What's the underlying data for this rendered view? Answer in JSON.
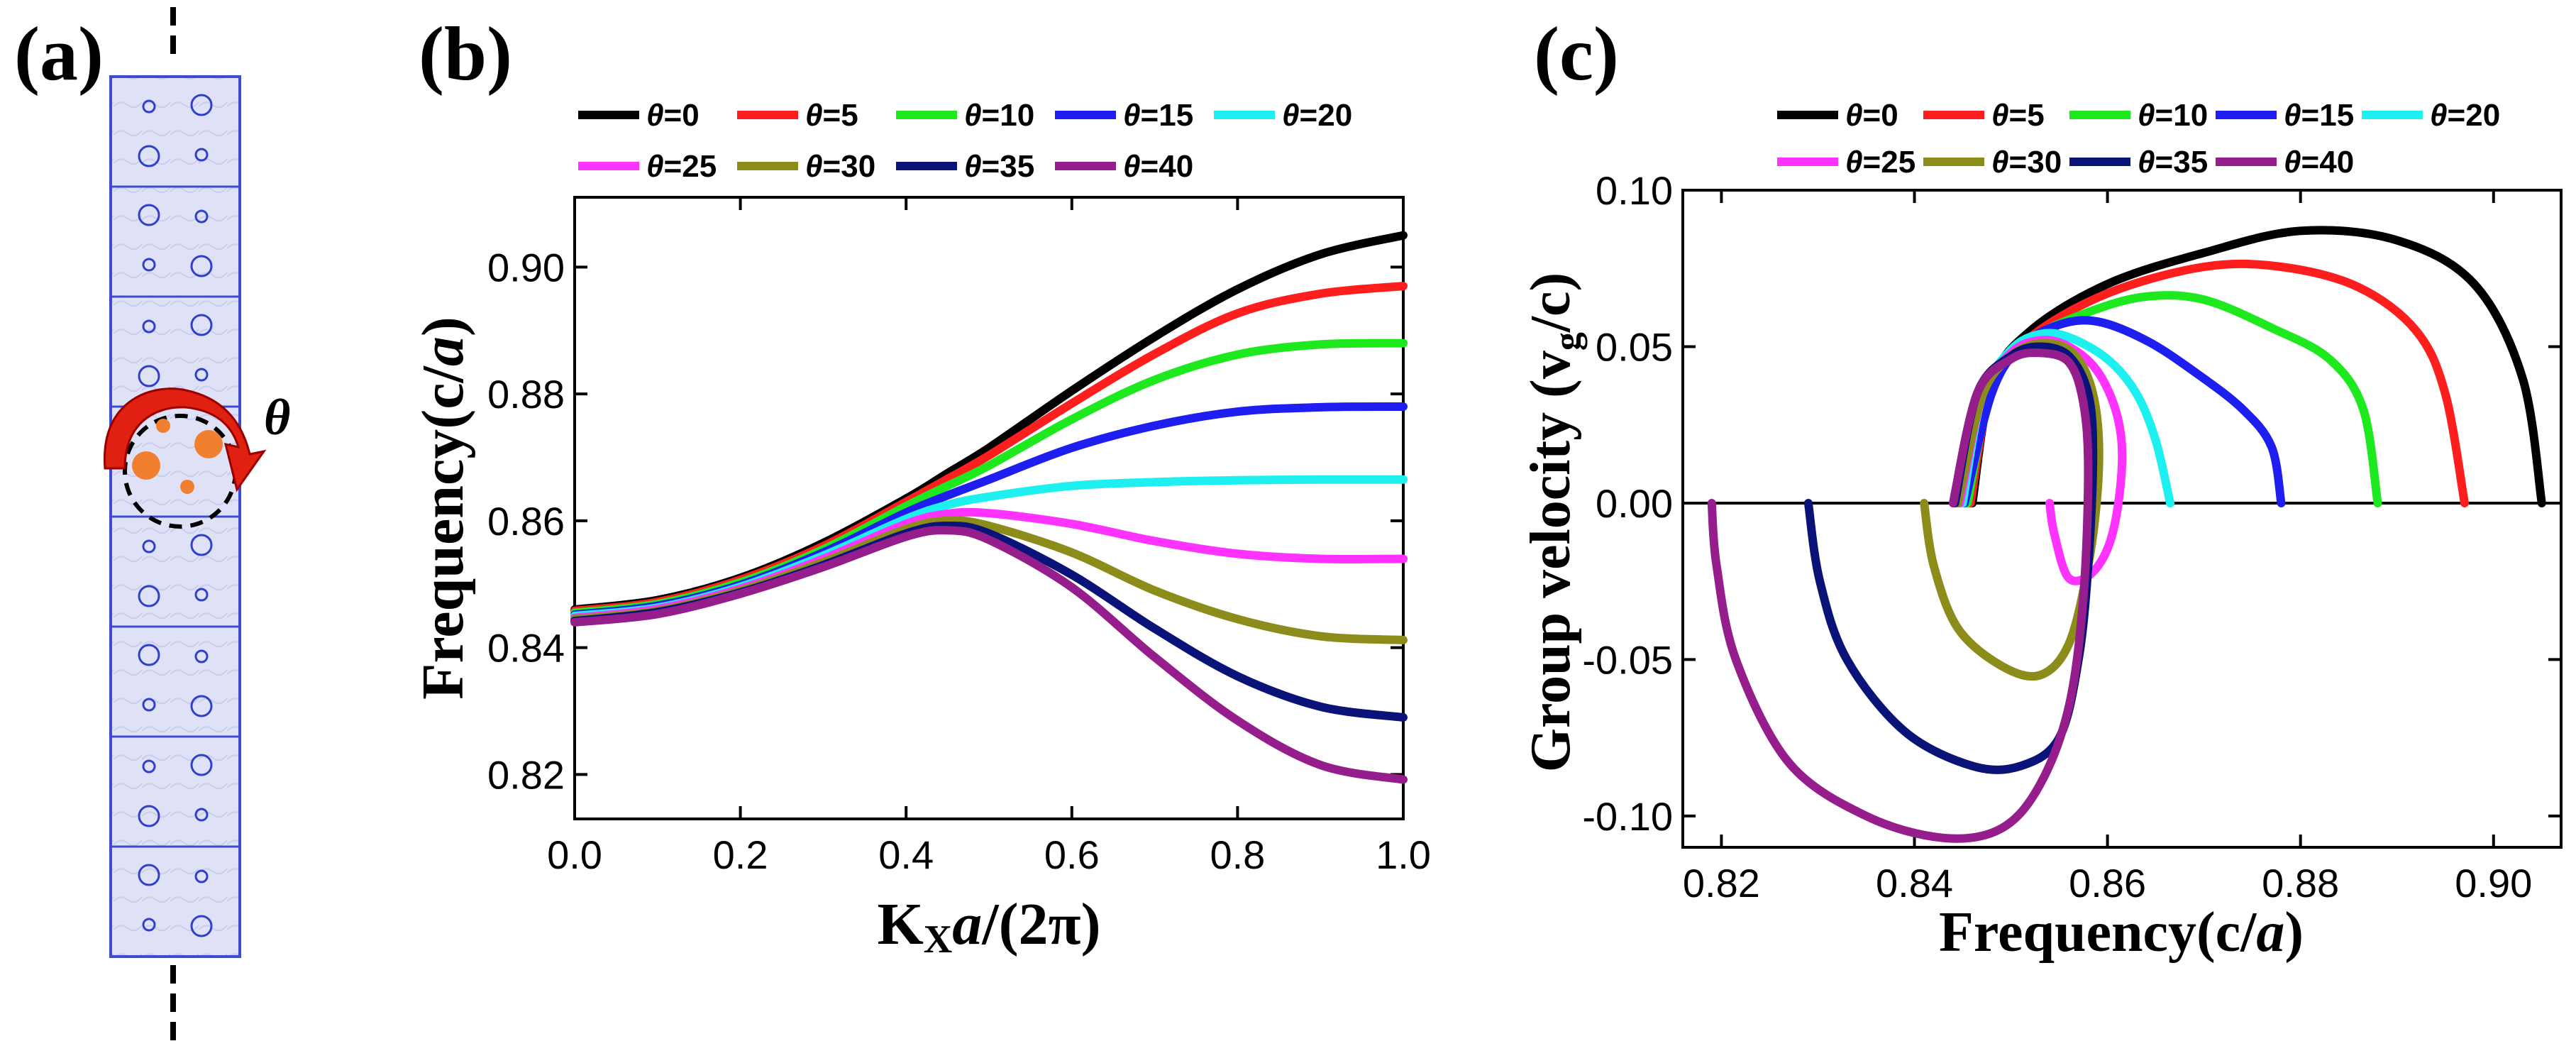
{
  "panels": {
    "a": {
      "label": "(a)",
      "theta_label": "θ"
    },
    "b": {
      "label": "(b)"
    },
    "c": {
      "label": "(c)"
    }
  },
  "colors": {
    "cell_fill": "#dfe2f6",
    "cell_border": "#3c4bd2",
    "hole_stroke": "#3040c8",
    "rod": "#f08030",
    "arrow": "#e02010"
  },
  "legend": [
    {
      "prefix": "θ",
      "text": "=0",
      "color": "#000000"
    },
    {
      "prefix": "θ",
      "text": "=5",
      "color": "#ff1e1e"
    },
    {
      "prefix": "θ",
      "text": "=10",
      "color": "#1ee81e"
    },
    {
      "prefix": "θ",
      "text": "=15",
      "color": "#1e1ef0"
    },
    {
      "prefix": "θ",
      "text": "=20",
      "color": "#1ef0f0"
    },
    {
      "prefix": "θ",
      "text": "=25",
      "color": "#ff33ff"
    },
    {
      "prefix": "θ",
      "text": "=30",
      "color": "#8c8c1a"
    },
    {
      "prefix": "θ",
      "text": "=35",
      "color": "#0a1478"
    },
    {
      "prefix": "θ",
      "text": "=40",
      "color": "#961e8c"
    }
  ],
  "chart_data": [
    {
      "id": "b",
      "type": "line",
      "xlabel": "Kxa/(2π)",
      "ylabel": "Frequency(c/a)",
      "xlim": [
        0,
        1
      ],
      "ylim": [
        0.813,
        0.911
      ],
      "xticks": [
        "0.0",
        "0.2",
        "0.4",
        "0.6",
        "0.8",
        "1.0"
      ],
      "xtick_values": [
        0,
        0.2,
        0.4,
        0.6,
        0.8,
        1.0
      ],
      "yticks": [
        "0.82",
        "0.84",
        "0.86",
        "0.88",
        "0.90"
      ],
      "ytick_values": [
        0.82,
        0.84,
        0.86,
        0.88,
        0.9
      ],
      "x": [
        0,
        0.1,
        0.2,
        0.3,
        0.4,
        0.45,
        0.5,
        0.6,
        0.7,
        0.8,
        0.9,
        1.0
      ],
      "series": [
        {
          "name": "θ=0",
          "values": [
            0.846,
            0.8475,
            0.851,
            0.8565,
            0.8635,
            0.8675,
            0.8715,
            0.8805,
            0.889,
            0.8965,
            0.902,
            0.905
          ]
        },
        {
          "name": "θ=5",
          "values": [
            0.8458,
            0.8472,
            0.8507,
            0.856,
            0.863,
            0.8666,
            0.8703,
            0.8785,
            0.8863,
            0.8927,
            0.8958,
            0.897
          ]
        },
        {
          "name": "θ=10",
          "values": [
            0.8455,
            0.8469,
            0.8503,
            0.8555,
            0.8623,
            0.8655,
            0.8687,
            0.876,
            0.8822,
            0.8862,
            0.8878,
            0.888
          ]
        },
        {
          "name": "θ=15",
          "values": [
            0.8452,
            0.8466,
            0.8499,
            0.855,
            0.8613,
            0.864,
            0.8665,
            0.8715,
            0.875,
            0.8772,
            0.8779,
            0.878
          ]
        },
        {
          "name": "θ=20",
          "values": [
            0.845,
            0.8463,
            0.8496,
            0.8545,
            0.8603,
            0.8625,
            0.8638,
            0.8655,
            0.8661,
            0.8664,
            0.8665,
            0.8665
          ]
        },
        {
          "name": "θ=25",
          "values": [
            0.8447,
            0.8461,
            0.8493,
            0.854,
            0.8595,
            0.8611,
            0.8612,
            0.8595,
            0.8568,
            0.8548,
            0.854,
            0.854
          ]
        },
        {
          "name": "θ=30",
          "values": [
            0.8445,
            0.8458,
            0.849,
            0.8535,
            0.8587,
            0.86,
            0.8592,
            0.855,
            0.849,
            0.8445,
            0.8418,
            0.8412
          ]
        },
        {
          "name": "θ=35",
          "values": [
            0.8442,
            0.8456,
            0.8487,
            0.853,
            0.858,
            0.8592,
            0.858,
            0.8515,
            0.843,
            0.8355,
            0.8307,
            0.829
          ]
        },
        {
          "name": "θ=40",
          "values": [
            0.844,
            0.8453,
            0.8485,
            0.8527,
            0.8575,
            0.8585,
            0.857,
            0.8495,
            0.8385,
            0.8285,
            0.8215,
            0.8192
          ]
        }
      ]
    },
    {
      "id": "c",
      "type": "line",
      "xlabel": "Frequency(c/a)",
      "ylabel": "Group velocity (vg/c)",
      "xlim": [
        0.816,
        0.907
      ],
      "ylim": [
        -0.11,
        0.1
      ],
      "xticks": [
        "0.82",
        "0.84",
        "0.86",
        "0.88",
        "0.90"
      ],
      "xtick_values": [
        0.82,
        0.84,
        0.86,
        0.88,
        0.9
      ],
      "yticks": [
        "0.10",
        "0.05",
        "0.00",
        "-0.05",
        "-0.10"
      ],
      "ytick_values": [
        0.1,
        0.05,
        0.0,
        -0.05,
        -0.1
      ],
      "series": [
        {
          "name": "θ=0",
          "points": [
            [
              0.846,
              0
            ],
            [
              0.848,
              0.038
            ],
            [
              0.852,
              0.055
            ],
            [
              0.86,
              0.07
            ],
            [
              0.87,
              0.08
            ],
            [
              0.88,
              0.087
            ],
            [
              0.89,
              0.084
            ],
            [
              0.898,
              0.07
            ],
            [
              0.903,
              0.04
            ],
            [
              0.905,
              0
            ]
          ]
        },
        {
          "name": "θ=5",
          "points": [
            [
              0.8458,
              0
            ],
            [
              0.848,
              0.037
            ],
            [
              0.852,
              0.053
            ],
            [
              0.86,
              0.067
            ],
            [
              0.87,
              0.0755
            ],
            [
              0.878,
              0.0755
            ],
            [
              0.886,
              0.069
            ],
            [
              0.892,
              0.055
            ],
            [
              0.895,
              0.035
            ],
            [
              0.897,
              0
            ]
          ]
        },
        {
          "name": "θ=10",
          "points": [
            [
              0.8455,
              0
            ],
            [
              0.848,
              0.036
            ],
            [
              0.852,
              0.052
            ],
            [
              0.858,
              0.061
            ],
            [
              0.864,
              0.066
            ],
            [
              0.87,
              0.065
            ],
            [
              0.877,
              0.056
            ],
            [
              0.883,
              0.046
            ],
            [
              0.8865,
              0.03
            ],
            [
              0.888,
              0
            ]
          ]
        },
        {
          "name": "θ=15",
          "points": [
            [
              0.8452,
              0
            ],
            [
              0.848,
              0.035
            ],
            [
              0.851,
              0.05
            ],
            [
              0.855,
              0.057
            ],
            [
              0.859,
              0.058
            ],
            [
              0.864,
              0.052
            ],
            [
              0.869,
              0.042
            ],
            [
              0.874,
              0.03
            ],
            [
              0.877,
              0.018
            ],
            [
              0.878,
              0
            ]
          ]
        },
        {
          "name": "θ=20",
          "points": [
            [
              0.845,
              0
            ],
            [
              0.847,
              0.034
            ],
            [
              0.85,
              0.049
            ],
            [
              0.853,
              0.054
            ],
            [
              0.856,
              0.053
            ],
            [
              0.86,
              0.046
            ],
            [
              0.863,
              0.035
            ],
            [
              0.865,
              0.02
            ],
            [
              0.8665,
              0
            ]
          ]
        },
        {
          "name": "θ=25",
          "points": [
            [
              0.8447,
              0
            ],
            [
              0.847,
              0.034
            ],
            [
              0.85,
              0.048
            ],
            [
              0.853,
              0.052
            ],
            [
              0.856,
              0.05
            ],
            [
              0.859,
              0.042
            ],
            [
              0.861,
              0.028
            ],
            [
              0.8615,
              0.012
            ],
            [
              0.8605,
              -0.01
            ],
            [
              0.8585,
              -0.022
            ],
            [
              0.856,
              -0.024
            ],
            [
              0.8545,
              -0.01
            ],
            [
              0.854,
              0
            ]
          ]
        },
        {
          "name": "θ=30",
          "points": [
            [
              0.8445,
              0
            ],
            [
              0.847,
              0.034
            ],
            [
              0.85,
              0.047
            ],
            [
              0.853,
              0.051
            ],
            [
              0.856,
              0.049
            ],
            [
              0.858,
              0.04
            ],
            [
              0.859,
              0.025
            ],
            [
              0.859,
              0.005
            ],
            [
              0.858,
              -0.02
            ],
            [
              0.856,
              -0.045
            ],
            [
              0.853,
              -0.055
            ],
            [
              0.849,
              -0.052
            ],
            [
              0.8445,
              -0.04
            ],
            [
              0.842,
              -0.02
            ],
            [
              0.841,
              0
            ]
          ]
        },
        {
          "name": "θ=35",
          "points": [
            [
              0.8442,
              0
            ],
            [
              0.8465,
              0.035
            ],
            [
              0.85,
              0.047
            ],
            [
              0.853,
              0.05
            ],
            [
              0.856,
              0.047
            ],
            [
              0.858,
              0.035
            ],
            [
              0.8585,
              0.015
            ],
            [
              0.858,
              -0.02
            ],
            [
              0.857,
              -0.05
            ],
            [
              0.855,
              -0.075
            ],
            [
              0.851,
              -0.084
            ],
            [
              0.846,
              -0.084
            ],
            [
              0.839,
              -0.073
            ],
            [
              0.833,
              -0.05
            ],
            [
              0.8302,
              -0.025
            ],
            [
              0.829,
              0
            ]
          ]
        },
        {
          "name": "θ=40",
          "points": [
            [
              0.844,
              0
            ],
            [
              0.8465,
              0.035
            ],
            [
              0.85,
              0.046
            ],
            [
              0.853,
              0.048
            ],
            [
              0.856,
              0.045
            ],
            [
              0.8575,
              0.032
            ],
            [
              0.858,
              0.01
            ],
            [
              0.8575,
              -0.03
            ],
            [
              0.856,
              -0.065
            ],
            [
              0.853,
              -0.09
            ],
            [
              0.849,
              -0.104
            ],
            [
              0.843,
              -0.107
            ],
            [
              0.835,
              -0.1
            ],
            [
              0.827,
              -0.083
            ],
            [
              0.8215,
              -0.05
            ],
            [
              0.8195,
              -0.02
            ],
            [
              0.819,
              0
            ]
          ]
        }
      ]
    }
  ]
}
